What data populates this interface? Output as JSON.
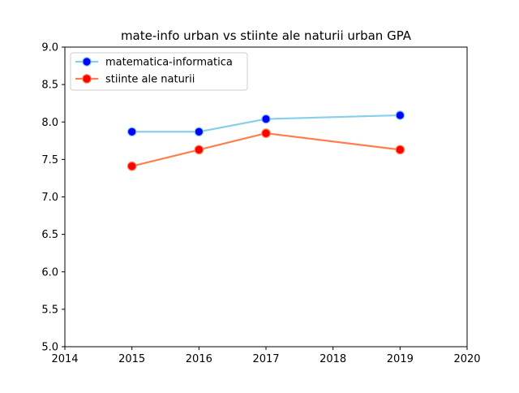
{
  "chart_data": {
    "type": "line",
    "title": "mate-info urban vs stiinte ale naturii urban GPA",
    "xlabel": "",
    "ylabel": "",
    "xlim": [
      2014,
      2020
    ],
    "ylim": [
      5.0,
      9.0
    ],
    "xticks": [
      "2014",
      "2015",
      "2016",
      "2017",
      "2018",
      "2019",
      "2020"
    ],
    "yticks": [
      "5.0",
      "5.5",
      "6.0",
      "6.5",
      "7.0",
      "7.5",
      "8.0",
      "8.5",
      "9.0"
    ],
    "grid": false,
    "legend_position": "top-left",
    "series": [
      {
        "name": "matematica-informatica",
        "x": [
          2015,
          2016,
          2017,
          2019
        ],
        "y": [
          7.87,
          7.87,
          8.04,
          8.09
        ],
        "line_color": "#87ceeb",
        "marker_color": "#0000ff"
      },
      {
        "name": "stiinte ale naturii",
        "x": [
          2015,
          2016,
          2017,
          2019
        ],
        "y": [
          7.41,
          7.63,
          7.85,
          7.63
        ],
        "line_color": "#ff7f50",
        "marker_color": "#ff0000"
      }
    ]
  }
}
